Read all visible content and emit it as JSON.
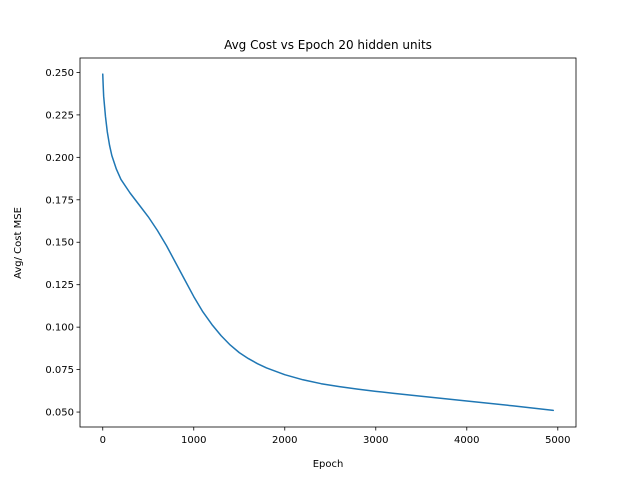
{
  "chart_data": {
    "type": "line",
    "title": "Avg Cost vs Epoch 20 hidden units",
    "xlabel": "Epoch",
    "ylabel": "Avg/ Cost MSE",
    "xlim": [
      -250,
      5200
    ],
    "ylim": [
      0.0412,
      0.2585
    ],
    "xticks": [
      0,
      1000,
      2000,
      3000,
      4000,
      5000
    ],
    "xtick_labels": [
      "0",
      "1000",
      "2000",
      "3000",
      "4000",
      "5000"
    ],
    "yticks": [
      0.05,
      0.075,
      0.1,
      0.125,
      0.15,
      0.175,
      0.2,
      0.225,
      0.25
    ],
    "ytick_labels": [
      "0.050",
      "0.075",
      "0.100",
      "0.125",
      "0.150",
      "0.175",
      "0.200",
      "0.225",
      "0.250"
    ],
    "grid": false,
    "series": [
      {
        "color": "#1f77b4",
        "x": [
          0,
          5,
          10,
          20,
          30,
          50,
          75,
          100,
          150,
          200,
          300,
          400,
          500,
          600,
          700,
          800,
          900,
          1000,
          1100,
          1200,
          1300,
          1400,
          1500,
          1600,
          1700,
          1800,
          2000,
          2200,
          2400,
          2600,
          2800,
          3000,
          3200,
          3500,
          4000,
          4500,
          4950
        ],
        "y": [
          0.249,
          0.242,
          0.236,
          0.23,
          0.224,
          0.215,
          0.207,
          0.201,
          0.193,
          0.187,
          0.179,
          0.172,
          0.165,
          0.157,
          0.148,
          0.138,
          0.128,
          0.118,
          0.109,
          0.1015,
          0.095,
          0.0895,
          0.085,
          0.0815,
          0.0785,
          0.076,
          0.072,
          0.069,
          0.0667,
          0.065,
          0.0635,
          0.0622,
          0.061,
          0.0593,
          0.0565,
          0.0537,
          0.051
        ]
      }
    ]
  }
}
